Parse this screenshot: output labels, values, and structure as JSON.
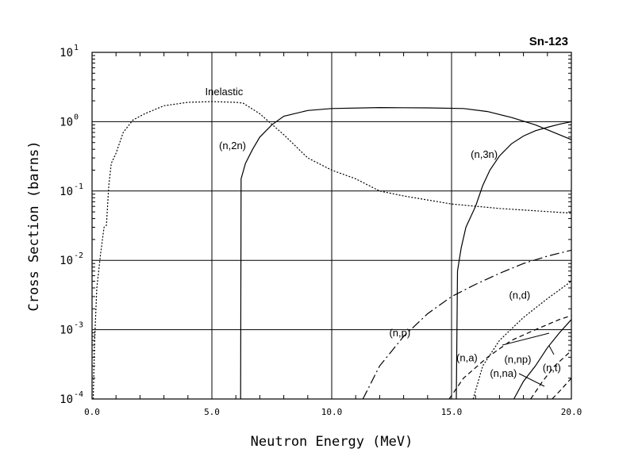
{
  "chart_data": {
    "type": "line",
    "title": "Sn-123",
    "xlabel": "Neutron Energy (MeV)",
    "ylabel": "Cross Section (barns)",
    "xlim": [
      0,
      20
    ],
    "ylim": [
      0.0001,
      10
    ],
    "yscale": "log",
    "grid": true,
    "x_ticks": [
      "0.0",
      "5.0",
      "10.0",
      "15.0",
      "20.0"
    ],
    "y_ticks": [
      {
        "base": "10",
        "exp": "-4"
      },
      {
        "base": "10",
        "exp": "-3"
      },
      {
        "base": "10",
        "exp": "-2"
      },
      {
        "base": "10",
        "exp": "-1"
      },
      {
        "base": "10",
        "exp": "0"
      },
      {
        "base": "10",
        "exp": "1"
      }
    ],
    "series": [
      {
        "name": "Inelastic",
        "style": "dotted",
        "points": [
          [
            0.05,
            0.0001
          ],
          [
            0.1,
            0.0006
          ],
          [
            0.2,
            0.004
          ],
          [
            0.35,
            0.012
          ],
          [
            0.5,
            0.03
          ],
          [
            0.6,
            0.032
          ],
          [
            0.7,
            0.12
          ],
          [
            0.8,
            0.25
          ],
          [
            1.0,
            0.35
          ],
          [
            1.3,
            0.7
          ],
          [
            1.7,
            1.05
          ],
          [
            2.2,
            1.3
          ],
          [
            3.0,
            1.7
          ],
          [
            4.0,
            1.9
          ],
          [
            5.0,
            1.95
          ],
          [
            6.0,
            1.9
          ],
          [
            6.3,
            1.85
          ],
          [
            7.0,
            1.3
          ],
          [
            8.0,
            0.65
          ],
          [
            9.0,
            0.3
          ],
          [
            10.0,
            0.2
          ],
          [
            11.0,
            0.15
          ],
          [
            12.0,
            0.1
          ],
          [
            13.0,
            0.085
          ],
          [
            15.0,
            0.065
          ],
          [
            17.0,
            0.056
          ],
          [
            20.0,
            0.048
          ]
        ]
      },
      {
        "name": "(n,2n)",
        "style": "solid",
        "points": [
          [
            6.2,
            0.0001
          ],
          [
            6.22,
            0.15
          ],
          [
            6.4,
            0.25
          ],
          [
            6.7,
            0.4
          ],
          [
            7.0,
            0.6
          ],
          [
            7.5,
            0.9
          ],
          [
            8.0,
            1.2
          ],
          [
            9.0,
            1.45
          ],
          [
            10.0,
            1.55
          ],
          [
            12.0,
            1.6
          ],
          [
            14.0,
            1.58
          ],
          [
            15.5,
            1.55
          ],
          [
            16.5,
            1.4
          ],
          [
            17.5,
            1.15
          ],
          [
            18.5,
            0.9
          ],
          [
            19.5,
            0.65
          ],
          [
            20.0,
            0.55
          ]
        ]
      },
      {
        "name": "(n,3n)",
        "style": "solid",
        "points": [
          [
            15.2,
            0.0001
          ],
          [
            15.25,
            0.007
          ],
          [
            15.4,
            0.015
          ],
          [
            15.6,
            0.03
          ],
          [
            16.0,
            0.06
          ],
          [
            16.3,
            0.12
          ],
          [
            16.6,
            0.2
          ],
          [
            17.0,
            0.32
          ],
          [
            17.5,
            0.48
          ],
          [
            18.0,
            0.62
          ],
          [
            18.5,
            0.74
          ],
          [
            19.0,
            0.83
          ],
          [
            19.5,
            0.92
          ],
          [
            20.0,
            1.0
          ]
        ]
      },
      {
        "name": "(n,p)",
        "style": "dashdot",
        "points": [
          [
            11.3,
            0.0001
          ],
          [
            12.0,
            0.0003
          ],
          [
            13.0,
            0.0008
          ],
          [
            14.0,
            0.0017
          ],
          [
            15.0,
            0.003
          ],
          [
            16.0,
            0.0045
          ],
          [
            17.0,
            0.0065
          ],
          [
            18.0,
            0.009
          ],
          [
            19.0,
            0.0115
          ],
          [
            20.0,
            0.014
          ]
        ]
      },
      {
        "name": "(n,d)",
        "style": "dotted",
        "points": [
          [
            15.9,
            0.0001
          ],
          [
            16.3,
            0.0003
          ],
          [
            17.0,
            0.0007
          ],
          [
            18.0,
            0.0015
          ],
          [
            19.0,
            0.0028
          ],
          [
            20.0,
            0.005
          ]
        ]
      },
      {
        "name": "(n,a)",
        "style": "dashed",
        "points": [
          [
            14.9,
            0.0001
          ],
          [
            15.5,
            0.0002
          ],
          [
            16.5,
            0.0004
          ],
          [
            17.5,
            0.0007
          ],
          [
            18.5,
            0.001
          ],
          [
            19.5,
            0.0014
          ],
          [
            20.0,
            0.0016
          ]
        ]
      },
      {
        "name": "(n,np)",
        "style": "solid",
        "points": [
          [
            17.6,
            0.0001
          ],
          [
            18.0,
            0.00018
          ],
          [
            18.5,
            0.0003
          ],
          [
            19.0,
            0.00055
          ],
          [
            19.5,
            0.0009
          ],
          [
            20.0,
            0.0014
          ]
        ]
      },
      {
        "name": "(n,t)",
        "style": "dashed",
        "points": [
          [
            18.3,
            0.0001
          ],
          [
            18.8,
            0.00018
          ],
          [
            19.3,
            0.0003
          ],
          [
            19.7,
            0.0004
          ],
          [
            20.0,
            0.0005
          ]
        ]
      },
      {
        "name": "(n,na)",
        "style": "dashed",
        "points": [
          [
            19.2,
            0.0001
          ],
          [
            19.6,
            0.00014
          ],
          [
            20.0,
            0.0002
          ]
        ]
      }
    ],
    "annotations": [
      {
        "text": "Inelastic",
        "x": 6.3,
        "y": 2.4,
        "name": "label-inelastic",
        "anchor": "end"
      },
      {
        "text": "(n,2n)",
        "x": 5.3,
        "y": 0.4,
        "name": "label-n2n",
        "anchor": "start"
      },
      {
        "text": "(n,3n)",
        "x": 15.8,
        "y": 0.3,
        "name": "label-n3n",
        "anchor": "start"
      },
      {
        "text": "(n,p)",
        "x": 12.4,
        "y": 0.0008,
        "name": "label-np",
        "anchor": "start"
      },
      {
        "text": "(n,d)",
        "x": 17.4,
        "y": 0.0028,
        "name": "label-nd",
        "anchor": "start"
      },
      {
        "text": "(n,a)",
        "x": 15.2,
        "y": 0.00035,
        "name": "label-na",
        "anchor": "start"
      },
      {
        "text": "(n,np)",
        "x": 17.2,
        "y": 0.00033,
        "name": "label-nnp",
        "anchor": "start"
      },
      {
        "text": "(n,na)",
        "x": 16.6,
        "y": 0.00021,
        "name": "label-nna",
        "anchor": "start"
      },
      {
        "text": "(n,t)",
        "x": 18.8,
        "y": 0.00025,
        "name": "label-nt",
        "anchor": "start"
      }
    ]
  }
}
